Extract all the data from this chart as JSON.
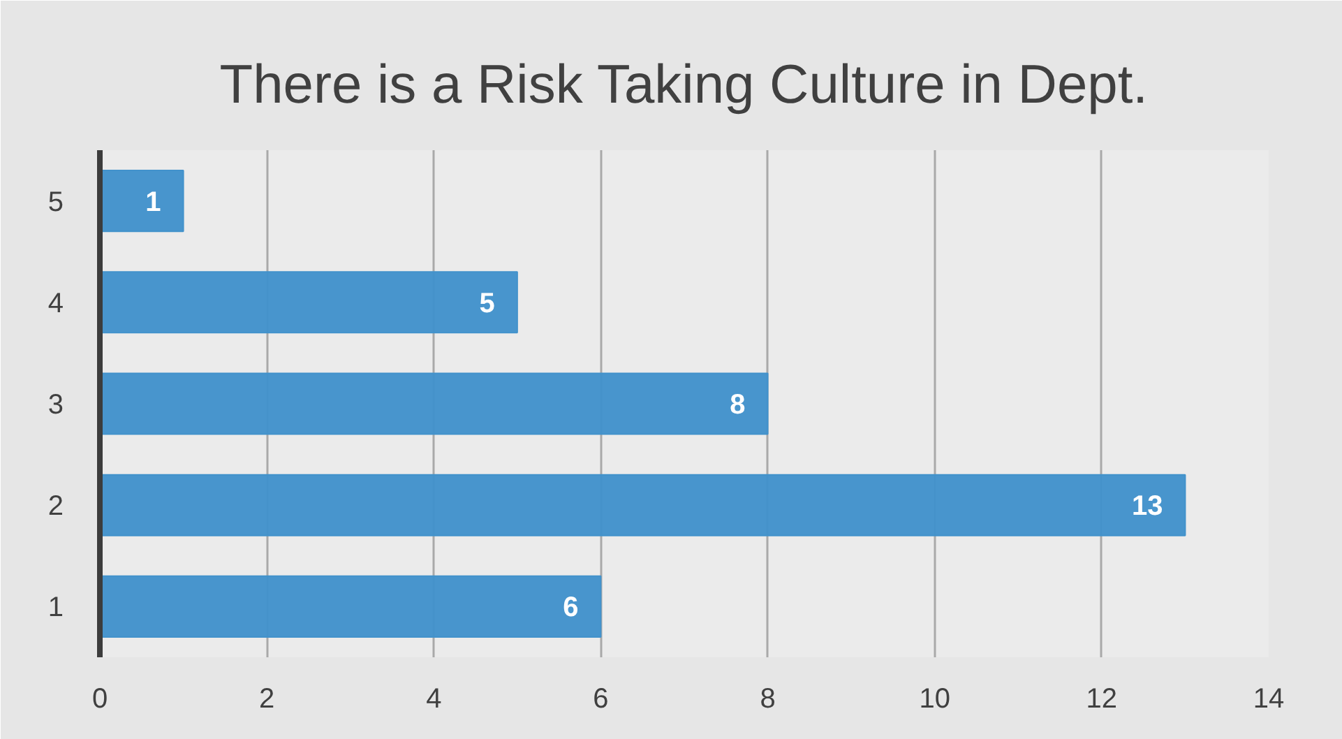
{
  "chart_data": {
    "type": "bar",
    "orientation": "horizontal",
    "title": "There is a Risk Taking Culture in Dept.",
    "categories": [
      "5",
      "4",
      "3",
      "2",
      "1"
    ],
    "values": [
      1,
      5,
      8,
      13,
      6
    ],
    "color": "#4292cb",
    "xlim": [
      0,
      14
    ],
    "xticks": [
      0,
      2,
      4,
      6,
      8,
      10,
      12,
      14
    ],
    "grid": "x",
    "data_labels": true
  }
}
